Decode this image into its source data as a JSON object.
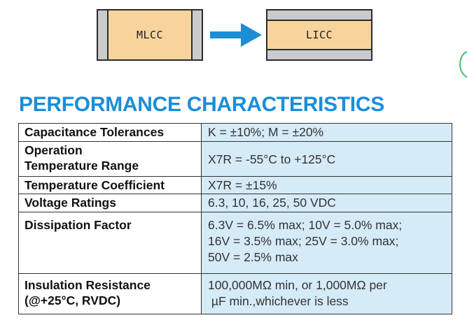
{
  "diagram": {
    "left_chip_label": "MLCC",
    "right_chip_label": "LICC",
    "arrow_color": "#1b8ed6",
    "chip_body_color": "#f8d49d",
    "terminal_color": "#c9cbcc"
  },
  "heading": "PERFORMANCE CHARACTERISTICS",
  "heading_color": "#1a8ed8",
  "table": {
    "value_cell_color": "#d6ebf8",
    "rows": [
      {
        "label_lines": [
          "Capacitance Tolerances"
        ],
        "value_lines": [
          "K = ±10%; M = ±20%"
        ]
      },
      {
        "label_lines": [
          "Operation",
          "Temperature Range"
        ],
        "value_lines": [
          "X7R = -55°C to +125°C"
        ]
      },
      {
        "label_lines": [
          "Temperature Coefficient"
        ],
        "value_lines": [
          "X7R = ±15%"
        ]
      },
      {
        "label_lines": [
          "Voltage Ratings"
        ],
        "value_lines": [
          "6.3, 10, 16, 25, 50 VDC"
        ]
      },
      {
        "label_lines": [
          "Dissipation Factor"
        ],
        "value_lines": [
          "6.3V = 6.5% max; 10V = 5.0% max;",
          "16V = 3.5% max; 25V = 3.0% max;",
          "50V = 2.5% max"
        ]
      },
      {
        "label_lines": [
          "Insulation Resistance",
          "(@+25°C, RVDC)"
        ],
        "value_lines": [
          "100,000MΩ min, or 1,000MΩ per",
          " µF min.,whichever is less"
        ]
      }
    ]
  }
}
